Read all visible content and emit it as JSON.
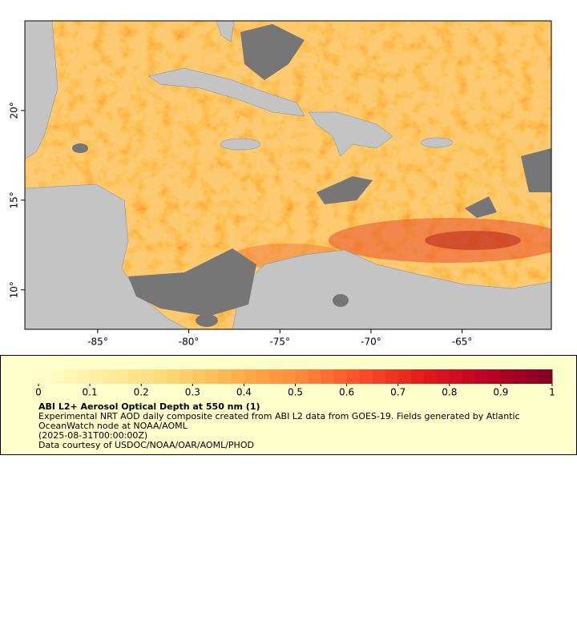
{
  "chart_data": {
    "type": "map",
    "xlim": [
      -89,
      -60.1
    ],
    "ylim": [
      7.8,
      25
    ],
    "xticks": [
      {
        "value": -85,
        "label": "-85°"
      },
      {
        "value": -80,
        "label": "-80°"
      },
      {
        "value": -75,
        "label": "-75°"
      },
      {
        "value": -70,
        "label": "-70°"
      },
      {
        "value": -65,
        "label": "-65°"
      }
    ],
    "yticks": [
      {
        "value": 10,
        "label": "10°"
      },
      {
        "value": 15,
        "label": "15°"
      },
      {
        "value": 20,
        "label": "20°"
      }
    ],
    "colorbar": {
      "lim": [
        0,
        1
      ],
      "ticks": [
        0,
        0.1,
        0.2,
        0.3,
        0.4,
        0.5,
        0.6,
        0.7,
        0.8,
        0.9,
        1
      ],
      "colors": [
        "#ffffcc",
        "#ffeda0",
        "#fed976",
        "#feb24c",
        "#fd8d3c",
        "#fc4e2a",
        "#e31a1c",
        "#bd0026",
        "#800026"
      ]
    },
    "title": "ABI L2+ Aerosol Optical Depth at 550 nm (1)",
    "subtitle": "Experimental NRT AOD daily composite created from ABI L2 data from GOES-19. Fields generated by Atlantic OceanWatch node at NOAA/AOML",
    "time": "(2025-08-31T00:00:00Z)",
    "credit": "Data courtesy of USDOC/NOAA/OAR/AOML/PHOD"
  }
}
